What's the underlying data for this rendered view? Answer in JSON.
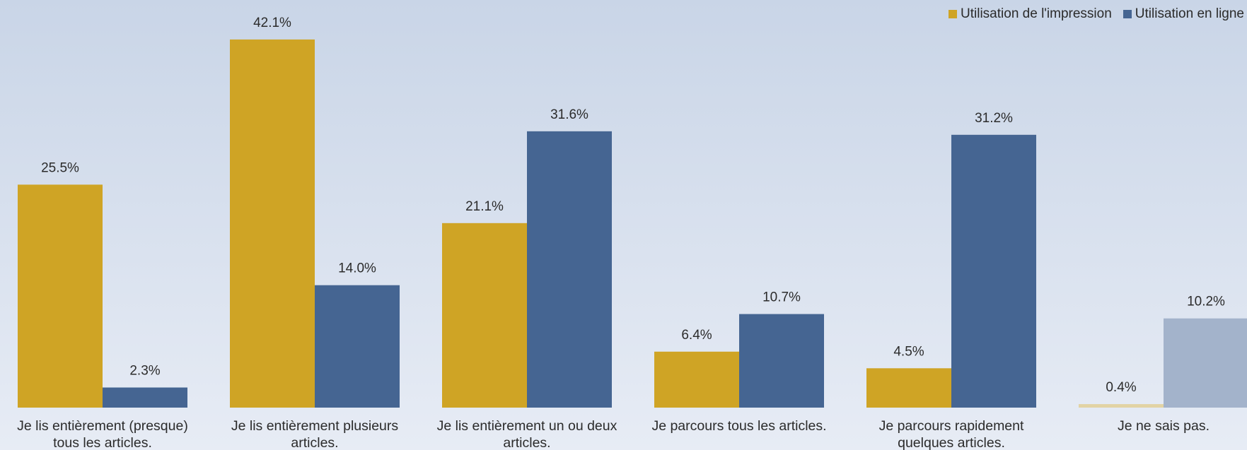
{
  "chart_data": {
    "type": "bar",
    "categories": [
      [
        "Je lis entièrement (presque)",
        "tous les articles."
      ],
      [
        "Je lis entièrement plusieurs",
        "articles."
      ],
      [
        "Je lis entièrement un ou deux",
        "articles."
      ],
      [
        "Je parcours tous les articles."
      ],
      [
        "Je parcours rapidement",
        "quelques articles."
      ],
      [
        "Je ne sais pas."
      ]
    ],
    "series": [
      {
        "name": "Utilisation de l'impression",
        "color": "#cfa425",
        "values": [
          25.5,
          42.1,
          21.1,
          6.4,
          4.5,
          0.4
        ],
        "value_labels": [
          "25.5%",
          "42.1%",
          "21.1%",
          "6.4%",
          "4.5%",
          "0.4%"
        ]
      },
      {
        "name": "Utilisation en ligne",
        "color": "#456592",
        "values": [
          2.3,
          14.0,
          31.6,
          10.7,
          31.2,
          10.2
        ],
        "value_labels": [
          "2.3%",
          "14.0%",
          "31.6%",
          "10.7%",
          "31.2%",
          "10.2%"
        ]
      }
    ],
    "faded_categories": [
      5
    ],
    "faded_colors": [
      "#e2d3a4",
      "#a3b3cb"
    ],
    "ylim": [
      0,
      45
    ],
    "grid": false,
    "legend_position": "top-right",
    "title": "",
    "xlabel": "",
    "ylabel": ""
  }
}
